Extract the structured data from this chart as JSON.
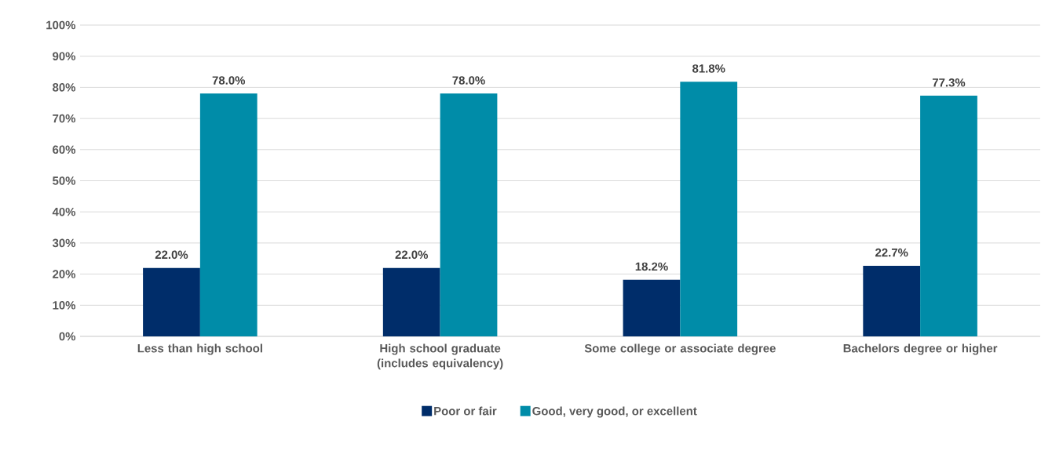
{
  "chart_data": {
    "type": "bar",
    "categories": [
      "Less than high school",
      "High school graduate (includes equivalency)",
      "Some college or associate degree",
      "Bachelors degree or higher"
    ],
    "series": [
      {
        "name": "Poor or fair",
        "color": "#002d6a",
        "values": [
          22.0,
          22.0,
          18.2,
          22.7
        ],
        "value_labels": [
          "22.0%",
          "22.0%",
          "18.2%",
          "22.7%"
        ]
      },
      {
        "name": "Good, very good, or excellent",
        "color": "#008ca8",
        "values": [
          78.0,
          78.0,
          81.8,
          77.3
        ],
        "value_labels": [
          "78.0%",
          "78.0%",
          "81.8%",
          "77.3%"
        ]
      }
    ],
    "ylim": [
      0,
      100
    ],
    "yticks": [
      {
        "value": 0,
        "label": "0%"
      },
      {
        "value": 10,
        "label": "10%"
      },
      {
        "value": 20,
        "label": "20%"
      },
      {
        "value": 30,
        "label": "30%"
      },
      {
        "value": 40,
        "label": "40%"
      },
      {
        "value": 50,
        "label": "50%"
      },
      {
        "value": 60,
        "label": "60%"
      },
      {
        "value": 70,
        "label": "70%"
      },
      {
        "value": 80,
        "label": "80%"
      },
      {
        "value": 90,
        "label": "90%"
      },
      {
        "value": 100,
        "label": "100%"
      }
    ],
    "grid": "y",
    "legend": "bottom"
  }
}
